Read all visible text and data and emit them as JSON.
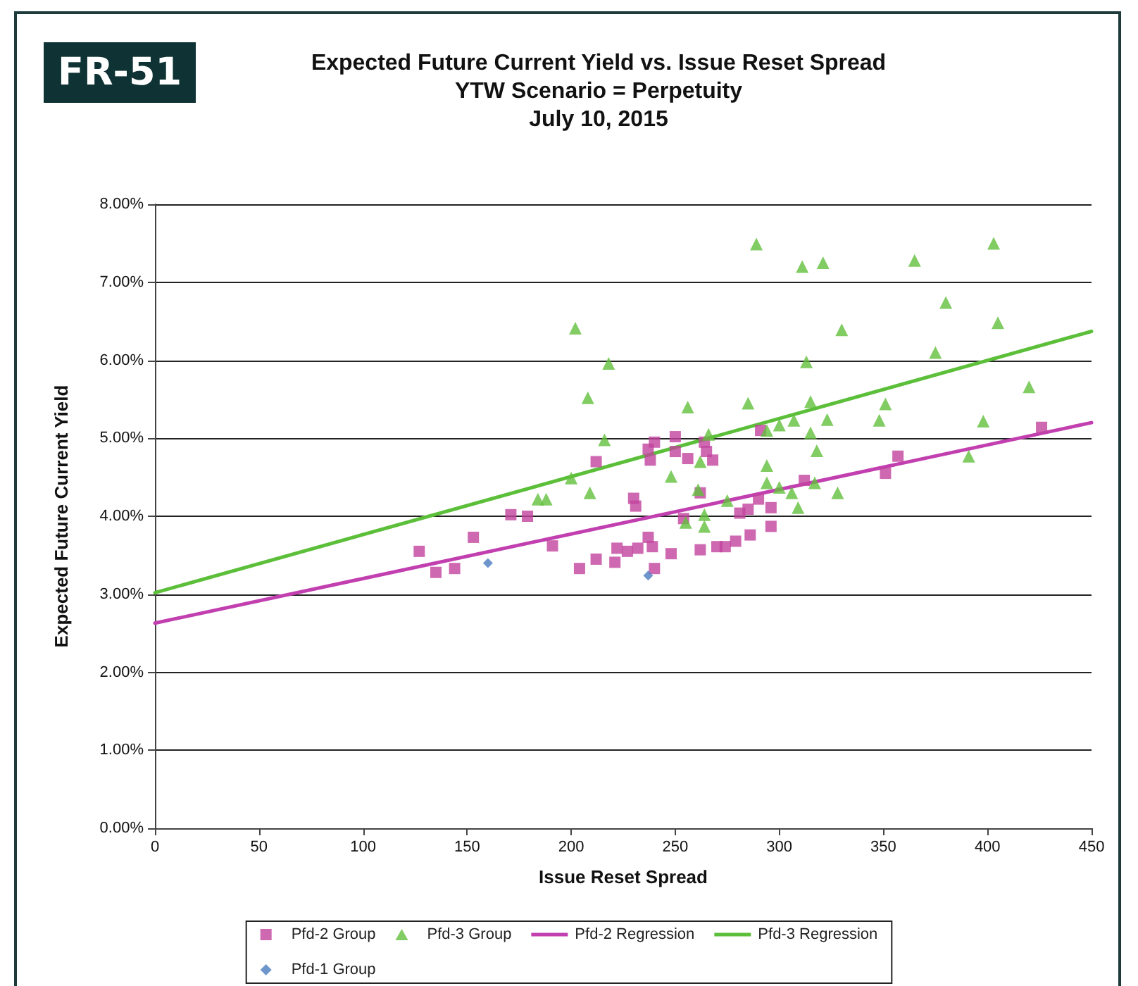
{
  "chart_data": {
    "type": "scatter",
    "title": "Expected Future Current Yield vs. Issue Reset Spread\nYTW Scenario = Perpetuity\nJuly 10, 2015",
    "annotations": [
      "FR-51"
    ],
    "xlabel": "Issue Reset Spread",
    "ylabel": "Expected Future Current Yield",
    "xlim": [
      0,
      450
    ],
    "xticks": [
      0,
      50,
      100,
      150,
      200,
      250,
      300,
      350,
      400,
      450
    ],
    "ylim": [
      0,
      8
    ],
    "yticks": [
      {
        "value": 0,
        "label": "0.00%"
      },
      {
        "value": 1,
        "label": "1.00%"
      },
      {
        "value": 2,
        "label": "2.00%"
      },
      {
        "value": 3,
        "label": "3.00%"
      },
      {
        "value": 4,
        "label": "4.00%"
      },
      {
        "value": 5,
        "label": "5.00%"
      },
      {
        "value": 6,
        "label": "6.00%"
      },
      {
        "value": 7,
        "label": "7.00%"
      },
      {
        "value": 8,
        "label": "8.00%"
      }
    ],
    "grid": "y",
    "legend": "bottom",
    "series": [
      {
        "name": "Pfd-2 Group",
        "marker": "square",
        "color": "#c2449e",
        "x": [
          127,
          135,
          144,
          153,
          171,
          179,
          191,
          204,
          212,
          212,
          221,
          222,
          227,
          230,
          231,
          232,
          237,
          239,
          240,
          237,
          240,
          238,
          248,
          250,
          250,
          256,
          254,
          262,
          262,
          264,
          265,
          268,
          270,
          274,
          279,
          281,
          286,
          285,
          290,
          296,
          296,
          291,
          312,
          351,
          357,
          426
        ],
        "values": [
          3.55,
          3.28,
          3.33,
          3.73,
          4.02,
          4.0,
          3.62,
          3.33,
          3.45,
          4.7,
          3.41,
          3.59,
          3.55,
          4.23,
          4.13,
          3.59,
          3.73,
          3.61,
          3.33,
          4.86,
          4.95,
          4.72,
          3.52,
          5.02,
          4.83,
          4.74,
          3.97,
          3.57,
          4.3,
          4.95,
          4.83,
          4.72,
          3.61,
          3.61,
          3.68,
          4.04,
          3.76,
          4.09,
          4.22,
          4.11,
          3.87,
          5.1,
          4.46,
          4.55,
          4.77,
          5.14
        ]
      },
      {
        "name": "Pfd-3 Group",
        "marker": "triangle",
        "color": "#62bf3c",
        "x": [
          184,
          188,
          200,
          202,
          208,
          209,
          216,
          218,
          248,
          255,
          256,
          261,
          262,
          264,
          264,
          266,
          275,
          285,
          289,
          294,
          294,
          294,
          300,
          300,
          306,
          307,
          309,
          311,
          313,
          315,
          315,
          317,
          318,
          321,
          323,
          328,
          330,
          348,
          351,
          365,
          375,
          380,
          391,
          398,
          403,
          405,
          420
        ],
        "values": [
          4.22,
          4.22,
          4.49,
          6.41,
          5.52,
          4.3,
          4.98,
          5.96,
          4.51,
          3.92,
          5.4,
          4.34,
          4.7,
          4.02,
          3.87,
          5.05,
          4.2,
          5.45,
          7.49,
          5.1,
          4.65,
          4.43,
          5.17,
          4.37,
          4.3,
          5.23,
          4.11,
          7.2,
          5.98,
          5.47,
          5.07,
          4.43,
          4.84,
          7.25,
          5.24,
          4.3,
          6.39,
          5.23,
          5.44,
          7.28,
          6.1,
          6.74,
          4.77,
          5.22,
          7.5,
          6.48,
          5.66
        ]
      },
      {
        "name": "Pfd-2 Regression",
        "type": "line",
        "marker": "none",
        "line_style": "solid",
        "color": "#c23fb0",
        "x": [
          0,
          450
        ],
        "values": [
          2.63,
          5.2
        ]
      },
      {
        "name": "Pfd-3 Regression",
        "type": "line",
        "marker": "none",
        "line_style": "solid",
        "color": "#5cbf3a",
        "x": [
          0,
          450
        ],
        "values": [
          3.02,
          6.37
        ]
      },
      {
        "name": "Pfd-1 Group",
        "marker": "diamond",
        "color": "#4a7cc0",
        "x": [
          160,
          237
        ],
        "values": [
          3.4,
          3.24
        ]
      }
    ]
  }
}
